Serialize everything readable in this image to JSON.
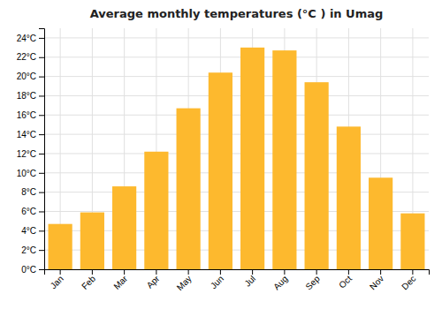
{
  "chart_data": {
    "type": "bar",
    "title": "Average monthly temperatures (°C ) in Umag",
    "categories": [
      "Jan",
      "Feb",
      "Mar",
      "Apr",
      "May",
      "Jun",
      "Jul",
      "Aug",
      "Sep",
      "Oct",
      "Nov",
      "Dec"
    ],
    "values": [
      4.7,
      5.9,
      8.6,
      12.2,
      16.7,
      20.4,
      23.0,
      22.7,
      19.4,
      14.8,
      9.5,
      5.8
    ],
    "color": "#FDB92E",
    "ylim": [
      0,
      25
    ],
    "yticks": [
      {
        "value": 0,
        "label": "0°C"
      },
      {
        "value": 2,
        "label": "2°C"
      },
      {
        "value": 4,
        "label": "4°C"
      },
      {
        "value": 6,
        "label": "6°C"
      },
      {
        "value": 8,
        "label": "8°C"
      },
      {
        "value": 10,
        "label": "10°C"
      },
      {
        "value": 12,
        "label": "12°C"
      },
      {
        "value": 14,
        "label": "14°C"
      },
      {
        "value": 16,
        "label": "16°C"
      },
      {
        "value": 18,
        "label": "18°C"
      },
      {
        "value": 20,
        "label": "20°C"
      },
      {
        "value": 22,
        "label": "22°C"
      },
      {
        "value": 24,
        "label": "24°C"
      }
    ],
    "grid": true
  }
}
